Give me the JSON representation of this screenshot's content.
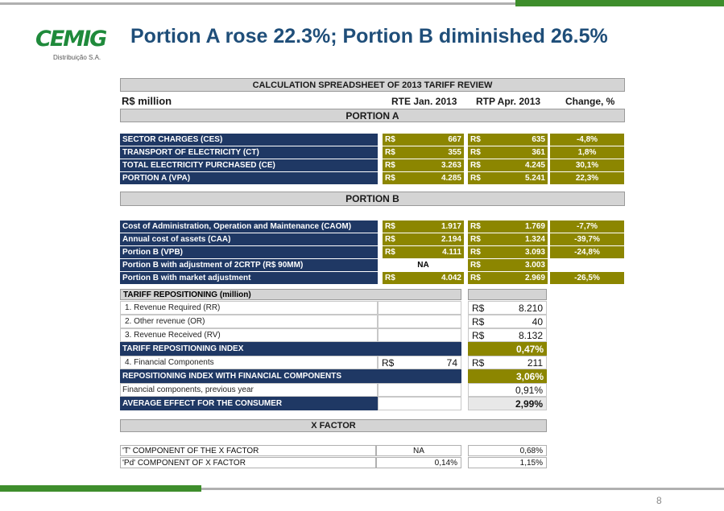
{
  "slide": {
    "title": "Portion A rose 22.3%; Portion B diminished 26.5%",
    "logo_text": "CEMIG",
    "logo_sub": "Distribuição S.A.",
    "page_number": "8",
    "colors": {
      "navy": "#1f3864",
      "olive": "#8c8600",
      "green": "#3e8e2c",
      "title_blue": "#1f4e79"
    }
  },
  "sheet": {
    "title": "CALCULATION SPREADSHEET OF 2013 TARIFF REVIEW",
    "unit_label": "R$ million",
    "col_rte": "RTE Jan. 2013",
    "col_rtp": "RTP Apr. 2013",
    "col_change": "Change, %",
    "currency": "R$",
    "portion_a_header": "PORTION A",
    "portion_b_header": "PORTION B",
    "portion_a": [
      {
        "label": "SECTOR CHARGES (CES)",
        "rte": "667",
        "rtp": "635",
        "change": "-4,8%"
      },
      {
        "label": "TRANSPORT OF ELECTRICITY (CT)",
        "rte": "355",
        "rtp": "361",
        "change": "1,8%"
      },
      {
        "label": "TOTAL ELECTRICITY PURCHASED (CE)",
        "rte": "3.263",
        "rtp": "4.245",
        "change": "30,1%"
      },
      {
        "label": "PORTION A (VPA)",
        "rte": "4.285",
        "rtp": "5.241",
        "change": "22,3%"
      }
    ],
    "portion_b": [
      {
        "label": "Cost of Administration, Operation and Maintenance (CAOM)",
        "rte": "1.917",
        "rtp": "1.769",
        "change": "-7,7%"
      },
      {
        "label": "Annual cost of assets (CAA)",
        "rte": "2.194",
        "rtp": "1.324",
        "change": "-39,7%"
      },
      {
        "label": "Portion B (VPB)",
        "rte": "4.111",
        "rtp": "3.093",
        "change": "-24,8%"
      },
      {
        "label": "Portion B with adjustment of 2CRTP (R$ 90MM)",
        "rte_na": "NA",
        "rtp": "3.003"
      },
      {
        "label": "Portion B with market adjustment",
        "rte": "4.042",
        "rtp": "2.969",
        "change": "-26,5%"
      }
    ]
  },
  "tariff": {
    "header": "TARIFF REPOSITIONING (million)",
    "rows": {
      "rr_label": "1. Revenue Required (RR)",
      "rr_value": "8.210",
      "or_label": "2. Other revenue (OR)",
      "or_value": "40",
      "rv_label": "3. Revenue Received (RV)",
      "rv_value": "8.132",
      "tri_label": "TARIFF REPOSITIONING INDEX",
      "tri_value": "0,47%",
      "fc_label": "4. Financial Components",
      "fc_mid_value": "74",
      "fc_value": "211",
      "rifc_label": "REPOSITIONING INDEX WITH FINANCIAL COMPONENTS",
      "rifc_value": "3,06%",
      "fcp_label": "Financial components, previous year",
      "fcp_value": "0,91%",
      "aec_label": "AVERAGE EFFECT FOR THE CONSUMER",
      "aec_value": "2,99%"
    }
  },
  "xfactor": {
    "header": "X FACTOR",
    "t_label": "'T' COMPONENT OF THE X FACTOR",
    "t_mid": "NA",
    "t_value": "0,68%",
    "pd_label": "'Pd' COMPONENT OF X FACTOR",
    "pd_mid": "0,14%",
    "pd_value": "1,15%"
  }
}
